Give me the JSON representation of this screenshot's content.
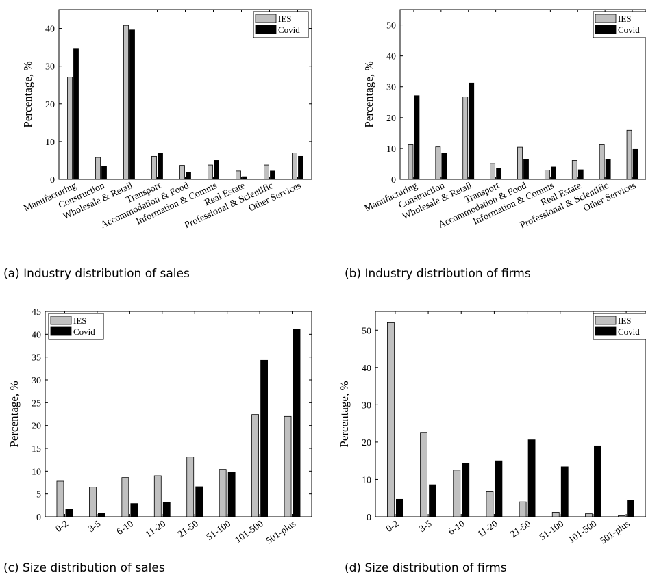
{
  "colors": {
    "IES": "#c0c0c0",
    "Covid": "#000000"
  },
  "chart_data": [
    {
      "type": "bar",
      "caption": "(a) Industry distribution of sales",
      "ylabel": "Percentage, %",
      "ylim": [
        0,
        45
      ],
      "yticks": [
        0,
        10,
        20,
        30,
        40
      ],
      "legend": "top-right",
      "categories": [
        "Manufacturing",
        "Construction",
        "Wholesale & Retail",
        "Transport",
        "Accommodation & Food",
        "Information & Comms",
        "Real Estate",
        "Professional & Scientific",
        "Other Services"
      ],
      "series": [
        {
          "name": "IES",
          "values": [
            27.1,
            5.8,
            40.8,
            6.1,
            3.7,
            3.8,
            2.2,
            3.8,
            7.0
          ]
        },
        {
          "name": "Covid",
          "values": [
            34.7,
            3.4,
            39.6,
            6.9,
            1.8,
            5.0,
            0.7,
            2.2,
            6.1
          ]
        }
      ]
    },
    {
      "type": "bar",
      "caption": "(b) Industry distribution of firms",
      "ylabel": "Percentage, %",
      "ylim": [
        0,
        55
      ],
      "yticks": [
        0,
        10,
        20,
        30,
        40,
        50
      ],
      "legend": "top-right",
      "categories": [
        "Manufacturing",
        "Construction",
        "Wholesale & Retail",
        "Transport",
        "Accommodation & Food",
        "Information & Comms",
        "Real Estate",
        "Professional & Scientific",
        "Other Services"
      ],
      "series": [
        {
          "name": "IES",
          "values": [
            11.2,
            10.5,
            26.7,
            5.1,
            10.4,
            3.0,
            6.1,
            11.2,
            15.9
          ]
        },
        {
          "name": "Covid",
          "values": [
            27.1,
            8.4,
            31.2,
            3.6,
            6.4,
            4.0,
            3.1,
            6.5,
            9.9
          ]
        }
      ]
    },
    {
      "type": "bar",
      "caption": "(c) Size distribution of sales",
      "ylabel": "Percentage, %",
      "ylim": [
        0,
        45
      ],
      "yticks": [
        0,
        5,
        10,
        15,
        20,
        25,
        30,
        35,
        40,
        45
      ],
      "legend": "top-left",
      "categories": [
        "0-2",
        "3-5",
        "6-10",
        "11-20",
        "21-50",
        "51-100",
        "101-500",
        "501-plus"
      ],
      "series": [
        {
          "name": "IES",
          "values": [
            7.8,
            6.5,
            8.6,
            9.0,
            13.1,
            10.4,
            22.4,
            22.0
          ]
        },
        {
          "name": "Covid",
          "values": [
            1.6,
            0.7,
            2.9,
            3.2,
            6.6,
            9.8,
            34.3,
            41.1
          ]
        }
      ]
    },
    {
      "type": "bar",
      "caption": "(d) Size distribution of firms",
      "ylabel": "Percentage, %",
      "ylim": [
        0,
        55
      ],
      "yticks": [
        0,
        10,
        20,
        30,
        40,
        50
      ],
      "legend": "top-right",
      "categories": [
        "0-2",
        "3-5",
        "6-10",
        "11-20",
        "21-50",
        "51-100",
        "101-500",
        "501-plus"
      ],
      "series": [
        {
          "name": "IES",
          "values": [
            52.0,
            22.6,
            12.5,
            6.7,
            4.0,
            1.2,
            0.8,
            0.3
          ]
        },
        {
          "name": "Covid",
          "values": [
            4.7,
            8.6,
            14.4,
            15.0,
            20.6,
            13.4,
            19.0,
            4.4
          ]
        }
      ]
    }
  ]
}
